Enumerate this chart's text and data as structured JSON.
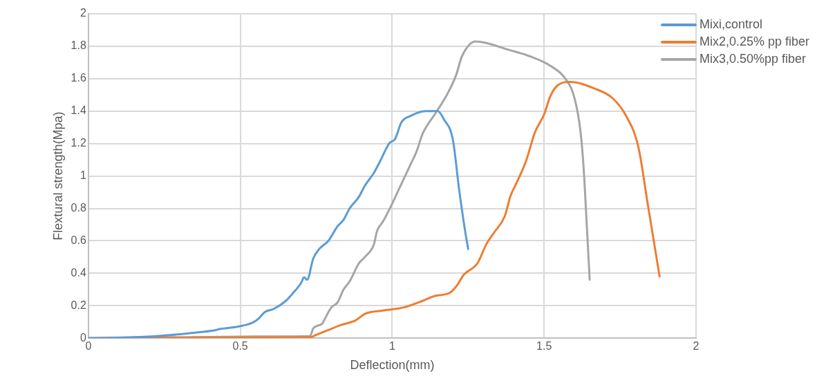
{
  "chart_data": {
    "type": "line",
    "xlabel": "Deflection(mm)",
    "ylabel": "Flextural strength(Mpa)",
    "xlim": [
      0,
      2
    ],
    "xticks": [
      0,
      0.5,
      1,
      1.5,
      2
    ],
    "ylim": [
      0,
      2
    ],
    "yticks": [
      0,
      0.2,
      0.4,
      0.6,
      0.8,
      1,
      1.2,
      1.4,
      1.6,
      1.8,
      2
    ],
    "grid": true,
    "legend": "top right",
    "marker": "none",
    "line_style": "solid",
    "series": [
      {
        "name": "Mixi,control",
        "color": "#5b9bd5",
        "x": [
          0,
          0.21,
          0.33,
          0.42,
          0.43,
          0.49,
          0.54,
          0.56,
          0.58,
          0.61,
          0.65,
          0.67,
          0.7,
          0.71,
          0.72,
          0.74,
          0.76,
          0.79,
          0.82,
          0.84,
          0.86,
          0.89,
          0.91,
          0.94,
          0.96,
          0.99,
          1.01,
          1.03,
          1.06,
          1.11,
          1.15,
          1.17,
          1.2,
          1.22,
          1.24,
          1.25
        ],
        "values": [
          0,
          0.01,
          0.03,
          0.05,
          0.055,
          0.07,
          0.095,
          0.12,
          0.16,
          0.18,
          0.23,
          0.27,
          0.34,
          0.375,
          0.36,
          0.49,
          0.55,
          0.6,
          0.69,
          0.73,
          0.8,
          0.87,
          0.94,
          1.02,
          1.09,
          1.2,
          1.23,
          1.33,
          1.37,
          1.4,
          1.4,
          1.35,
          1.22,
          0.92,
          0.66,
          0.55
        ]
      },
      {
        "name": "Mix2,0.25% pp fiber",
        "color": "#ed7d31",
        "x": [
          0,
          0.73,
          0.75,
          0.79,
          0.83,
          0.88,
          0.91,
          0.97,
          1.04,
          1.1,
          1.14,
          1.19,
          1.215,
          1.235,
          1.28,
          1.31,
          1.335,
          1.37,
          1.39,
          1.41,
          1.44,
          1.47,
          1.5,
          1.52,
          1.545,
          1.585,
          1.665,
          1.725,
          1.77,
          1.81,
          1.84,
          1.88
        ],
        "values": [
          0,
          0.005,
          0.02,
          0.05,
          0.08,
          0.11,
          0.15,
          0.17,
          0.19,
          0.23,
          0.26,
          0.28,
          0.33,
          0.39,
          0.46,
          0.58,
          0.65,
          0.75,
          0.88,
          0.96,
          1.09,
          1.27,
          1.38,
          1.49,
          1.56,
          1.58,
          1.54,
          1.48,
          1.37,
          1.18,
          0.84,
          0.38
        ]
      },
      {
        "name": "Mix3,0.50%pp fiber",
        "color": "#a5a5a5",
        "x": [
          0,
          0.56,
          0.73,
          0.74,
          0.77,
          0.78,
          0.8,
          0.82,
          0.84,
          0.86,
          0.89,
          0.91,
          0.94,
          0.95,
          0.97,
          0.995,
          1.02,
          1.04,
          1.06,
          1.08,
          1.1,
          1.14,
          1.18,
          1.21,
          1.23,
          1.275,
          1.31,
          1.38,
          1.45,
          1.52,
          1.57,
          1.6,
          1.62,
          1.63,
          1.64,
          1.65
        ],
        "values": [
          0,
          0.01,
          0.013,
          0.06,
          0.09,
          0.125,
          0.19,
          0.22,
          0.3,
          0.35,
          0.46,
          0.5,
          0.58,
          0.66,
          0.72,
          0.81,
          0.91,
          0.99,
          1.07,
          1.15,
          1.26,
          1.38,
          1.5,
          1.62,
          1.74,
          1.83,
          1.82,
          1.78,
          1.74,
          1.68,
          1.6,
          1.48,
          1.27,
          1.05,
          0.71,
          0.36
        ]
      }
    ]
  }
}
